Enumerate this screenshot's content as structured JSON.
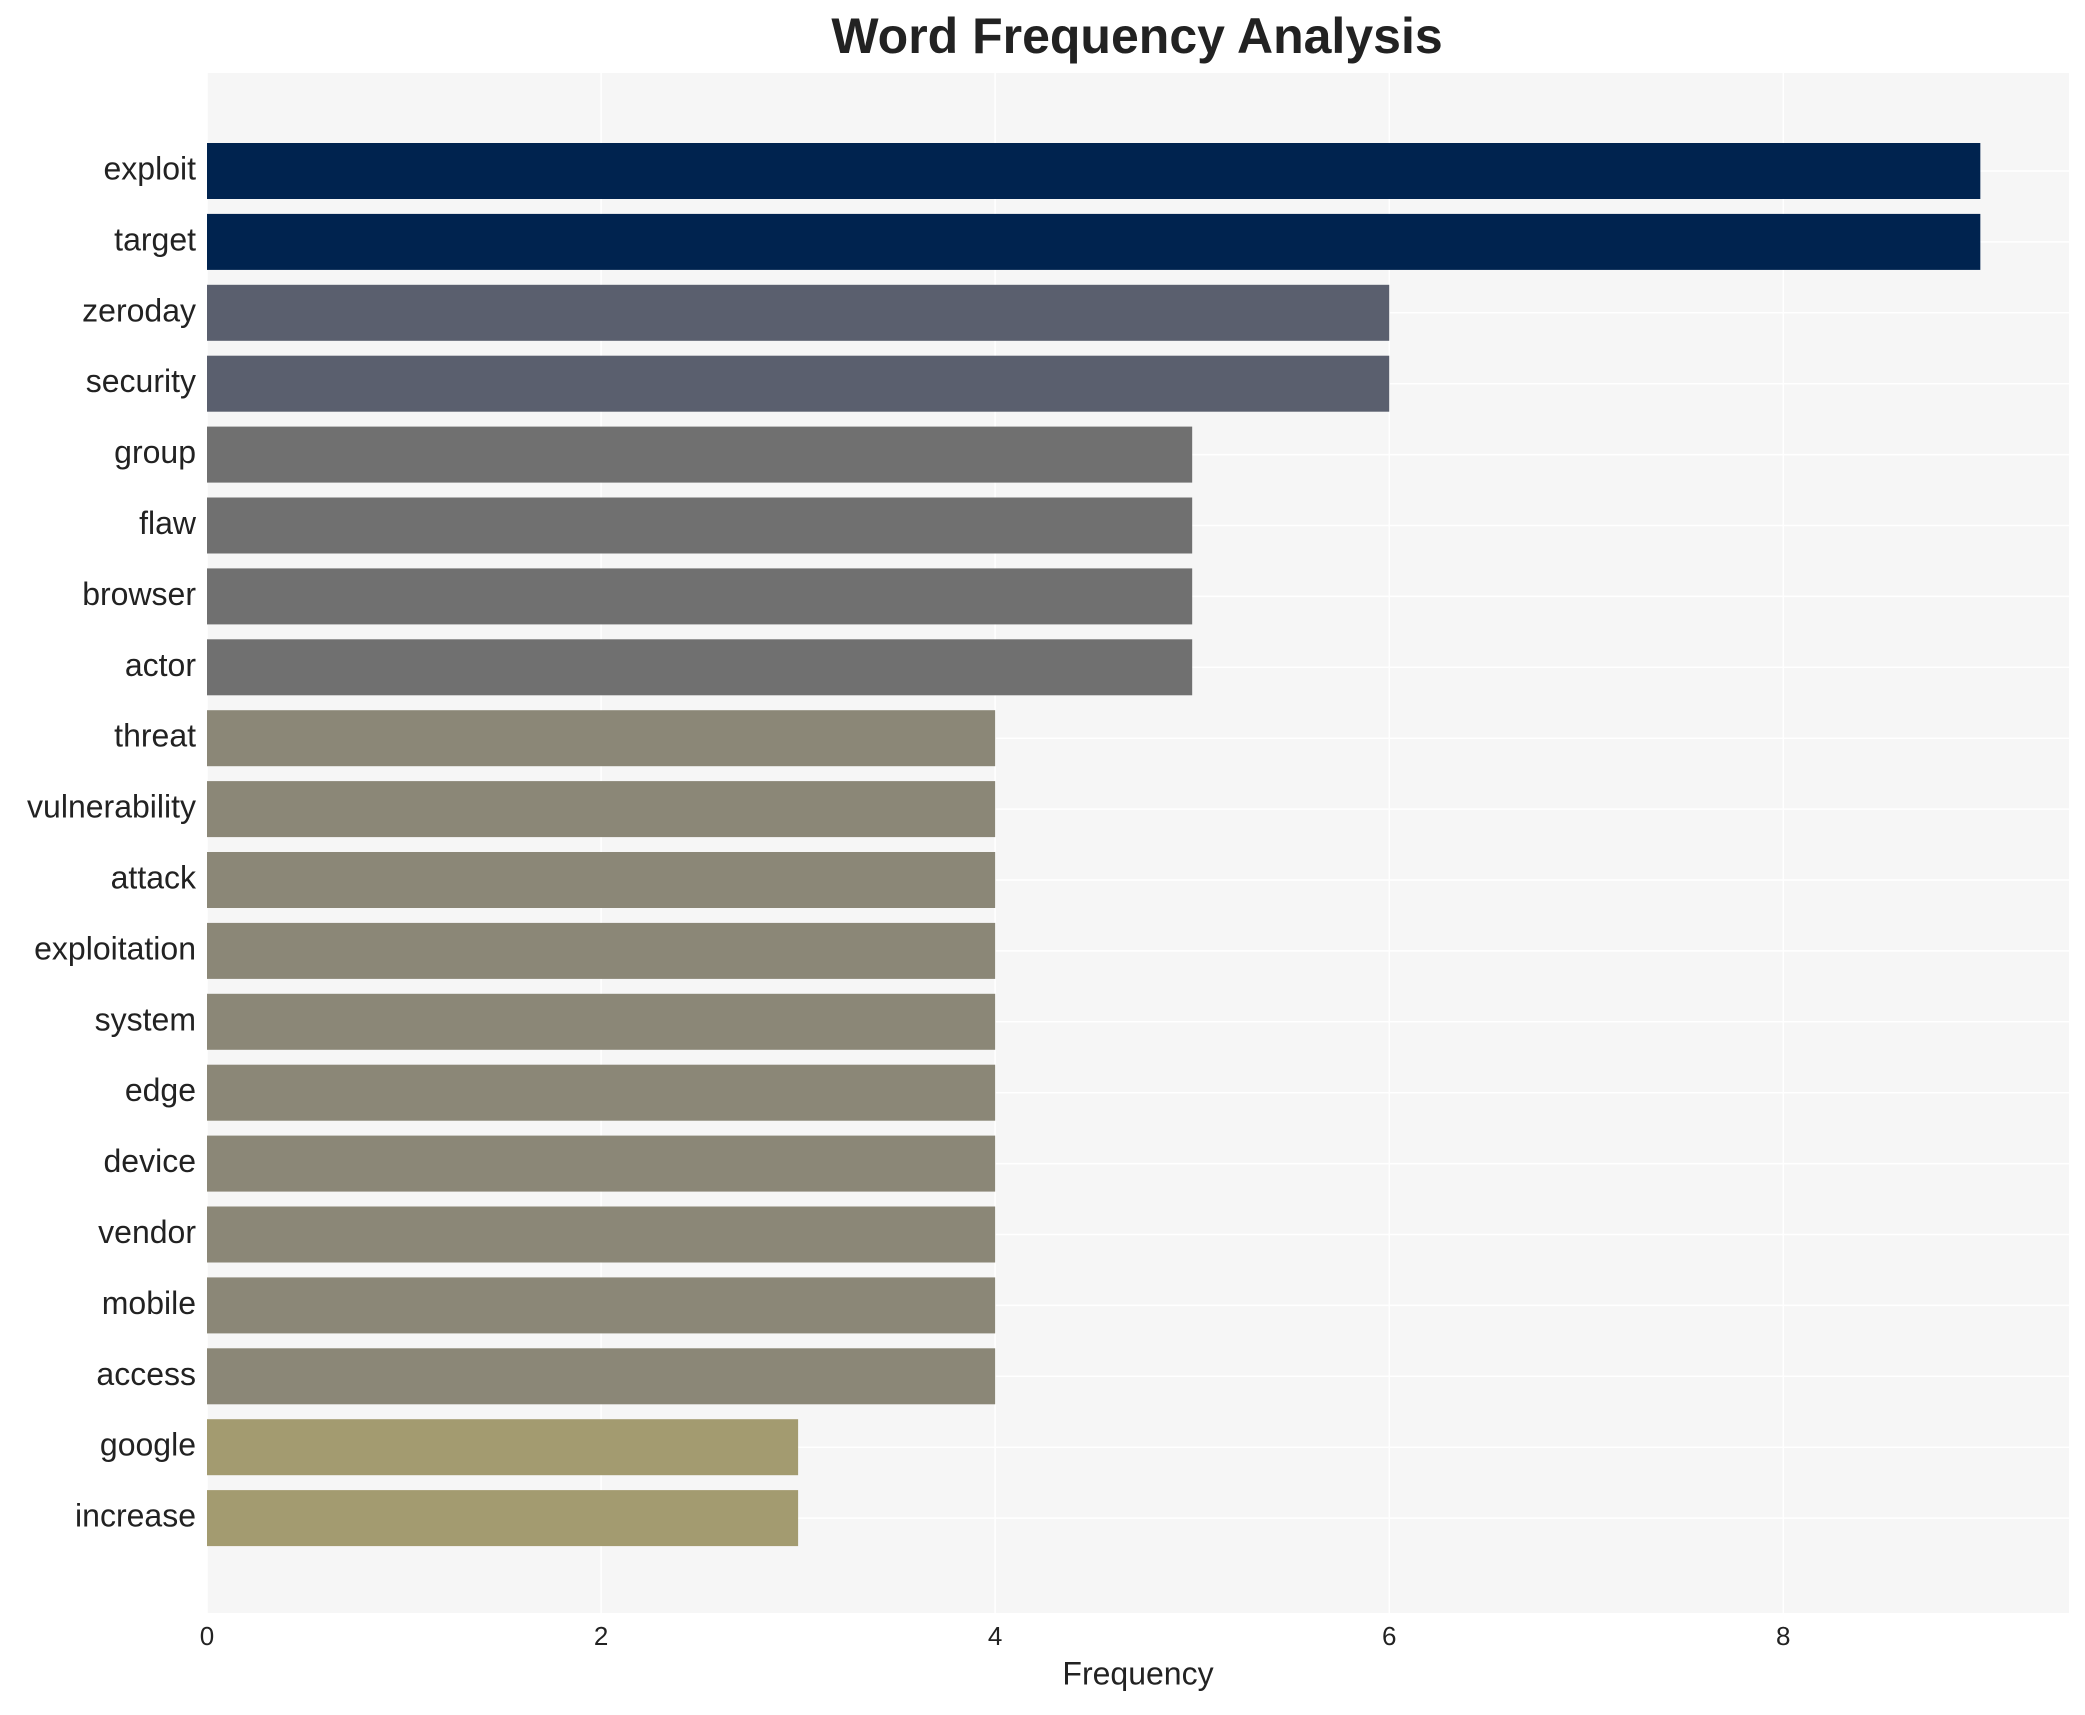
{
  "chart_data": {
    "type": "bar",
    "orientation": "horizontal",
    "title": "Word Frequency Analysis",
    "x_label": "Frequency",
    "categories": [
      "exploit",
      "target",
      "zeroday",
      "security",
      "group",
      "flaw",
      "browser",
      "actor",
      "threat",
      "vulnerability",
      "attack",
      "exploitation",
      "system",
      "edge",
      "device",
      "vendor",
      "mobile",
      "access",
      "google",
      "increase"
    ],
    "values": [
      9,
      9,
      6,
      6,
      5,
      5,
      5,
      5,
      4,
      4,
      4,
      4,
      4,
      4,
      4,
      4,
      4,
      4,
      3,
      3
    ],
    "colors": [
      "#00234f",
      "#00234f",
      "#5a5f6e",
      "#5a5f6e",
      "#707070",
      "#707070",
      "#707070",
      "#707070",
      "#8b8777",
      "#8b8777",
      "#8b8777",
      "#8b8777",
      "#8b8777",
      "#8b8777",
      "#8b8777",
      "#8b8777",
      "#8b8777",
      "#8b8777",
      "#a39b70",
      "#a39b70"
    ],
    "xlim": [
      0,
      9.45
    ],
    "xticks": [
      0,
      2,
      4,
      6,
      8
    ],
    "grid": true
  }
}
